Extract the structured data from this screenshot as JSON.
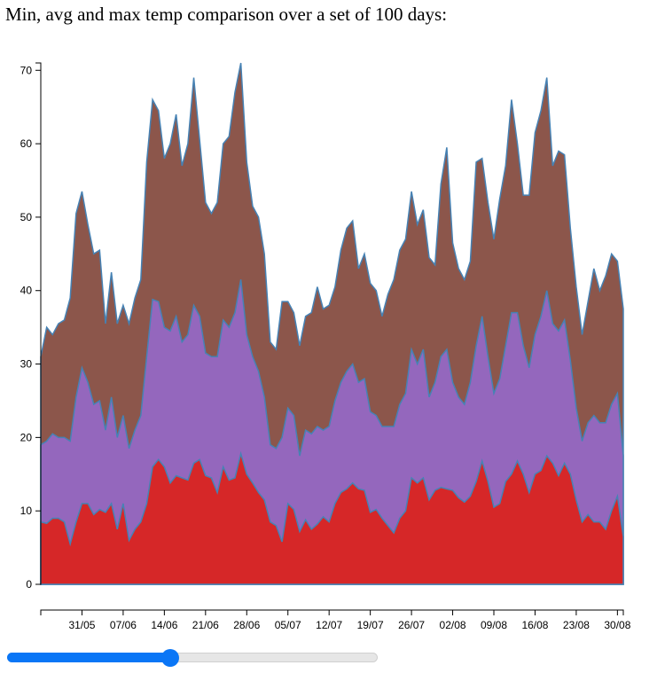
{
  "title": "Min, avg and max temp comparison over a set of 100 days:",
  "slider": {
    "value_fraction": 0.44
  },
  "chart_data": {
    "type": "area",
    "stacked": true,
    "ylim": [
      0,
      71
    ],
    "yticks": [
      0,
      10,
      20,
      30,
      40,
      50,
      60,
      70
    ],
    "x_tick_labels": [
      "31/05",
      "07/06",
      "14/06",
      "21/06",
      "28/06",
      "05/07",
      "12/07",
      "19/07",
      "26/07",
      "02/08",
      "09/08",
      "16/08",
      "23/08",
      "30/08"
    ],
    "x_tick_day_index": [
      7,
      14,
      21,
      28,
      35,
      42,
      49,
      56,
      63,
      70,
      77,
      84,
      91,
      98
    ],
    "colors": {
      "min": "#d62728",
      "avg": "#9467bd",
      "max": "#8c564b",
      "stroke": "#4682b4"
    },
    "min": [
      8.5,
      8.3,
      9.0,
      9.0,
      8.5,
      5.5,
      8.5,
      11.0,
      11.0,
      9.5,
      10.2,
      9.8,
      11.0,
      7.5,
      11.0,
      6.0,
      7.5,
      8.5,
      11.0,
      16.0,
      17.0,
      16.0,
      13.8,
      14.8,
      14.5,
      14.2,
      16.5,
      17.0,
      14.8,
      14.5,
      12.5,
      16.0,
      14.2,
      14.5,
      17.8,
      15.0,
      13.8,
      12.5,
      11.5,
      8.5,
      8.0,
      5.8,
      11.0,
      10.2,
      7.2,
      8.8,
      7.5,
      8.2,
      9.2,
      8.5,
      11.0,
      12.5,
      13.0,
      13.8,
      13.0,
      12.8,
      9.8,
      10.2,
      9.0,
      8.0,
      7.0,
      9.0,
      10.0,
      14.5,
      13.8,
      14.5,
      11.5,
      12.8,
      13.2,
      13.0,
      12.8,
      11.8,
      11.2,
      12.0,
      14.0,
      16.8,
      14.0,
      10.5,
      11.0,
      14.0,
      15.0,
      16.8,
      15.0,
      12.5,
      15.0,
      15.5,
      17.5,
      16.5,
      14.8,
      16.5,
      15.0,
      11.5,
      8.5,
      9.5,
      8.5,
      8.5,
      7.5,
      10.0,
      12.0,
      6.5
    ],
    "avg": [
      19.0,
      19.5,
      20.5,
      20.0,
      20.0,
      19.5,
      25.5,
      29.5,
      27.5,
      24.5,
      25.0,
      21.0,
      25.5,
      20.0,
      23.0,
      18.5,
      21.0,
      23.0,
      31.0,
      38.8,
      38.5,
      35.0,
      34.5,
      36.5,
      33.0,
      34.0,
      38.0,
      36.5,
      31.5,
      31.0,
      31.0,
      36.0,
      35.0,
      37.0,
      41.5,
      34.0,
      31.0,
      29.0,
      25.5,
      19.0,
      18.5,
      20.0,
      24.0,
      23.0,
      17.5,
      21.0,
      20.5,
      21.5,
      21.0,
      21.5,
      25.0,
      27.5,
      29.0,
      30.0,
      27.5,
      28.0,
      23.5,
      23.0,
      21.5,
      21.5,
      21.5,
      24.5,
      26.0,
      32.0,
      30.0,
      32.0,
      25.5,
      27.5,
      31.0,
      32.0,
      27.5,
      25.5,
      24.5,
      27.5,
      32.5,
      36.5,
      31.0,
      26.0,
      28.0,
      32.5,
      37.0,
      37.0,
      32.5,
      29.5,
      34.0,
      36.5,
      40.0,
      35.5,
      34.5,
      36.0,
      30.5,
      24.0,
      19.5,
      22.0,
      23.0,
      22.0,
      22.0,
      24.5,
      26.0,
      17.5
    ],
    "max": [
      31.0,
      35.0,
      34.0,
      35.5,
      36.0,
      39.0,
      50.5,
      53.5,
      49.0,
      45.0,
      45.5,
      35.5,
      42.5,
      35.5,
      38.0,
      35.5,
      39.0,
      41.5,
      57.5,
      66.0,
      64.5,
      58.0,
      60.0,
      64.0,
      57.0,
      60.0,
      69.0,
      60.5,
      52.0,
      50.5,
      52.0,
      60.0,
      61.0,
      67.0,
      71.0,
      57.5,
      51.5,
      50.0,
      45.0,
      33.0,
      32.0,
      38.5,
      38.5,
      37.0,
      32.5,
      36.5,
      37.0,
      40.5,
      37.5,
      38.0,
      40.5,
      45.5,
      48.5,
      49.5,
      43.0,
      45.0,
      41.0,
      40.0,
      36.5,
      39.5,
      41.5,
      45.5,
      47.0,
      53.5,
      49.0,
      51.0,
      44.5,
      43.5,
      54.5,
      59.5,
      46.5,
      43.0,
      41.5,
      44.0,
      57.5,
      58.0,
      52.0,
      47.0,
      52.5,
      57.0,
      66.0,
      60.0,
      53.0,
      53.0,
      61.5,
      64.5,
      69.0,
      57.0,
      59.0,
      58.5,
      48.5,
      40.5,
      34.0,
      38.5,
      43.0,
      40.0,
      42.0,
      45.0,
      44.0,
      37.5
    ]
  }
}
